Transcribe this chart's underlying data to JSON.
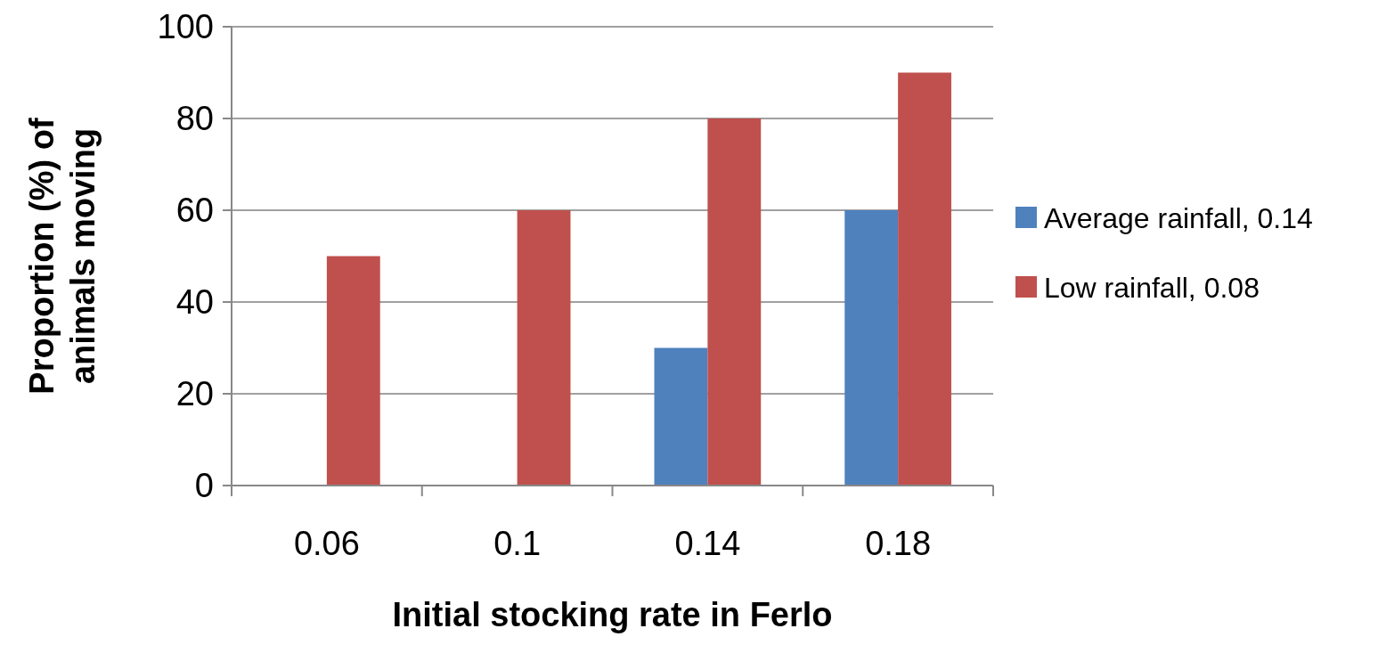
{
  "chart_data": {
    "type": "bar",
    "xlabel": "Initial stocking rate in Ferlo",
    "ylabel": "Proportion (%) of animals moving",
    "categories": [
      "0.06",
      "0.1",
      "0.14",
      "0.18"
    ],
    "series": [
      {
        "name": "Average rainfall, 0.14",
        "color": "#4f81bd",
        "values": [
          0,
          0,
          30,
          60
        ]
      },
      {
        "name": "Low rainfall, 0.08",
        "color": "#c0504d",
        "values": [
          50,
          60,
          80,
          90
        ]
      }
    ],
    "ylim": [
      0,
      100
    ],
    "yticks": [
      0,
      20,
      40,
      60,
      80,
      100
    ],
    "grid": "y",
    "legend": "right"
  }
}
